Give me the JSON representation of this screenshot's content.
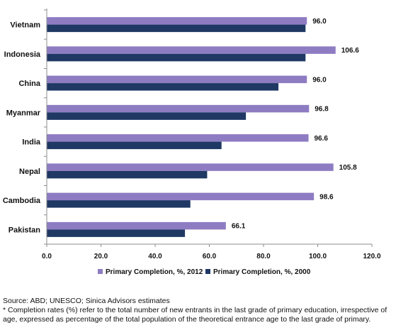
{
  "chart_data": {
    "type": "bar",
    "orientation": "horizontal",
    "categories": [
      "Vietnam",
      "Indonesia",
      "China",
      "Myanmar",
      "India",
      "Nepal",
      "Cambodia",
      "Pakistan"
    ],
    "series": [
      {
        "name": "Primary Completion, %, 2012",
        "color": "#8e7cc3",
        "values": [
          96.0,
          106.6,
          96.0,
          96.8,
          96.6,
          105.8,
          98.6,
          66.1
        ],
        "labels": [
          "96.0",
          "106.6",
          "96.0",
          "96.8",
          "96.6",
          "105.8",
          "98.6",
          "66.1"
        ]
      },
      {
        "name": "Primary Completion, %, 2000",
        "color": "#1f3864",
        "values": [
          95.5,
          95.5,
          85.5,
          73.5,
          64.5,
          59.2,
          53.0,
          51.0
        ]
      }
    ],
    "xlim": [
      0,
      120
    ],
    "xticks": [
      "0.0",
      "20.0",
      "40.0",
      "60.0",
      "80.0",
      "100.0",
      "120.0"
    ],
    "grid": false,
    "legend_position": "bottom"
  },
  "notes": {
    "source": "Source: ABD; UNESCO; Sinica Advisors estimates",
    "footnote": "* Completion rates (%) refer to the total number of new entrants in the last grade of primary education, irrespective of age, expressed as percentage of the total population of the theoretical entrance age to the last grade of primary."
  }
}
